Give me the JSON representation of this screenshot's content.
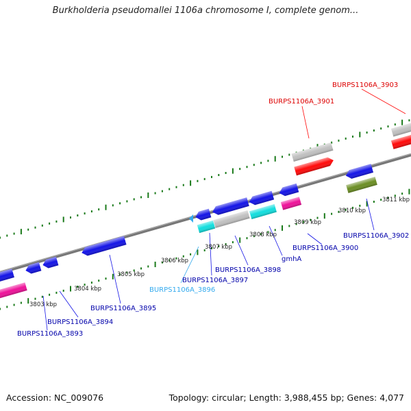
{
  "title": "Burkholderia pseudomallei 1106a chromosome I, complete genom...",
  "footer": {
    "accession": "Accession: NC_009076",
    "summary": "Topology: circular; Length: 3,988,455 bp; Genes: 4,077"
  },
  "colors": {
    "blue": "#1414e6",
    "red": "#ff0a0a",
    "gray": "#c0c0c0",
    "cyan": "#11dede",
    "magenta": "#ee1199",
    "olive": "#6b8e23",
    "light_blue": "#33aaee",
    "tick": "#1a7a1a",
    "backbone": "#888888"
  },
  "tick_labels": [
    "3803 kbp",
    "3804 kbp",
    "3805 kbp",
    "3806 kbp",
    "3807 kbp",
    "3808 kbp",
    "3809 kbp",
    "3810 kbp",
    "3811 kbp"
  ],
  "gene_labels": [
    {
      "text": "BURPS1106A_3903",
      "color": "red"
    },
    {
      "text": "BURPS1106A_3901",
      "color": "red"
    },
    {
      "text": "BURPS1106A_3902",
      "color": "blue"
    },
    {
      "text": "BURPS1106A_3900",
      "color": "blue"
    },
    {
      "text": "gmhA",
      "color": "blue"
    },
    {
      "text": "BURPS1106A_3898",
      "color": "blue"
    },
    {
      "text": "BURPS1106A_3897",
      "color": "blue"
    },
    {
      "text": "BURPS1106A_3896",
      "color": "light_blue"
    },
    {
      "text": "BURPS1106A_3895",
      "color": "blue"
    },
    {
      "text": "BURPS1106A_3894",
      "color": "blue"
    },
    {
      "text": "BURPS1106A_3893",
      "color": "blue"
    }
  ]
}
